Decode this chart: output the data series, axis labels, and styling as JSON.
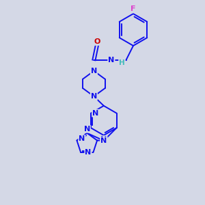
{
  "background_color": "#d4d8e6",
  "bond_color": "#1010ee",
  "atom_colors": {
    "N": "#1010ee",
    "O": "#cc0000",
    "F": "#dd44cc",
    "H": "#44bbbb",
    "C": "#111111"
  },
  "figsize": [
    3.0,
    3.0
  ],
  "dpi": 100,
  "xlim": [
    0,
    10
  ],
  "ylim": [
    0,
    10
  ]
}
